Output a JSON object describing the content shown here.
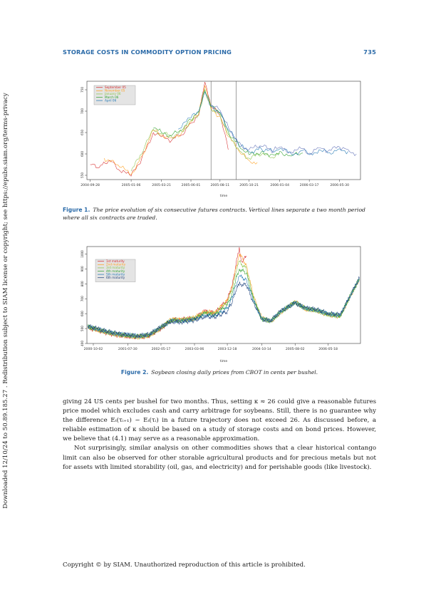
{
  "running_header": {
    "title": "STORAGE COSTS IN COMMODITY OPTION PRICING",
    "page_number": "735"
  },
  "sidebar_note": "Downloaded 12/10/24 to 50.89.185.27 . Redistribution subject to SIAM license or copyright; see https://epubs.siam.org/terms-privacy",
  "colors": {
    "accent": "#2a6aa8"
  },
  "figure1": {
    "label": "Figure 1.",
    "caption": "The price evolution of six consecutive futures contracts. Vertical lines separate a two month period where all six contracts are traded."
  },
  "figure2": {
    "label": "Figure 2.",
    "caption": "Soybean closing daily prices from CBOT in cents per bushel."
  },
  "chart_data": [
    {
      "type": "line",
      "ylabel": "price (cents)",
      "xlabel": "time",
      "ylim": [
        540,
        770
      ],
      "y_ticks": [
        550,
        600,
        650,
        700,
        750
      ],
      "x_ticks": [
        "2004-09-28",
        "2005-01-06",
        "2005-03-21",
        "2005-06-01",
        "2005-08-11",
        "2005-10-21",
        "2006-01-04",
        "2006-03-17",
        "2006-05-30"
      ],
      "legend_position": "top-left",
      "vertical_lines_at": [
        "2005-07-20",
        "2005-09-19"
      ],
      "series": [
        {
          "name": "September 05",
          "color": "#d62728",
          "x": [
            "2004-09-28",
            "2004-10-20",
            "2004-11-15",
            "2004-12-10",
            "2005-01-06",
            "2005-02-01",
            "2005-03-01",
            "2005-03-21",
            "2005-04-15",
            "2005-05-10",
            "2005-06-01",
            "2005-06-20",
            "2005-07-05",
            "2005-07-20",
            "2005-08-11",
            "2005-08-31"
          ],
          "values": [
            575,
            568,
            585,
            560,
            548,
            590,
            650,
            640,
            632,
            645,
            672,
            690,
            768,
            710,
            690,
            610
          ]
        },
        {
          "name": "November 05",
          "color": "#ff9f1c",
          "x": [
            "2004-11-01",
            "2004-12-01",
            "2005-01-06",
            "2005-02-01",
            "2005-03-01",
            "2005-03-21",
            "2005-04-15",
            "2005-05-10",
            "2005-06-01",
            "2005-06-20",
            "2005-07-05",
            "2005-07-20",
            "2005-08-11",
            "2005-09-01",
            "2005-10-01",
            "2005-10-21",
            "2005-11-10"
          ],
          "values": [
            590,
            575,
            552,
            595,
            655,
            645,
            638,
            650,
            675,
            692,
            760,
            705,
            688,
            640,
            600,
            585,
            580
          ]
        },
        {
          "name": "January 06",
          "color": "#8bc34a",
          "x": [
            "2005-01-06",
            "2005-02-01",
            "2005-03-01",
            "2005-03-21",
            "2005-04-15",
            "2005-05-10",
            "2005-06-01",
            "2005-06-20",
            "2005-07-05",
            "2005-07-20",
            "2005-08-11",
            "2005-09-01",
            "2005-10-01",
            "2005-10-21",
            "2005-11-20",
            "2005-12-20",
            "2006-01-04"
          ],
          "values": [
            560,
            600,
            658,
            648,
            640,
            652,
            678,
            695,
            752,
            708,
            690,
            645,
            605,
            590,
            598,
            590,
            600
          ]
        },
        {
          "name": "March 06",
          "color": "#2ca02c",
          "x": [
            "2005-03-01",
            "2005-03-21",
            "2005-04-15",
            "2005-05-10",
            "2005-06-01",
            "2005-06-20",
            "2005-07-05",
            "2005-07-20",
            "2005-08-11",
            "2005-09-01",
            "2005-10-01",
            "2005-10-21",
            "2005-11-20",
            "2005-12-20",
            "2006-01-04",
            "2006-02-01",
            "2006-03-01"
          ],
          "values": [
            660,
            650,
            643,
            655,
            680,
            698,
            748,
            710,
            695,
            650,
            612,
            598,
            605,
            598,
            606,
            595,
            602
          ]
        },
        {
          "name": "April 06",
          "color": "#1f77b4",
          "x": [
            "2005-05-01",
            "2005-06-01",
            "2005-06-20",
            "2005-07-05",
            "2005-07-20",
            "2005-08-11",
            "2005-09-01",
            "2005-10-01",
            "2005-10-21",
            "2005-11-20",
            "2005-12-20",
            "2006-01-04",
            "2006-02-01",
            "2006-03-01",
            "2006-03-17",
            "2006-04-10",
            "2006-05-01",
            "2006-05-30",
            "2006-06-20"
          ],
          "values": [
            658,
            684,
            700,
            745,
            712,
            698,
            655,
            618,
            605,
            612,
            604,
            612,
            600,
            608,
            598,
            610,
            602,
            612,
            606
          ]
        },
        {
          "name": "",
          "color": "#5b6bb5",
          "x": [
            "2005-07-20",
            "2005-08-11",
            "2005-09-01",
            "2005-10-01",
            "2005-10-21",
            "2005-11-20",
            "2005-12-20",
            "2006-01-04",
            "2006-02-01",
            "2006-03-01",
            "2006-03-17",
            "2006-04-10",
            "2006-05-01",
            "2006-05-30",
            "2006-06-20",
            "2006-07-10"
          ],
          "values": [
            715,
            702,
            660,
            622,
            610,
            618,
            608,
            616,
            604,
            612,
            602,
            614,
            606,
            616,
            610,
            600
          ]
        }
      ]
    },
    {
      "type": "line",
      "ylabel": "price in cents/bushel",
      "xlabel": "time",
      "ylim": [
        400,
        1050
      ],
      "y_ticks": [
        400,
        500,
        600,
        700,
        800,
        900,
        1000
      ],
      "x_ticks": [
        "2000-10-02",
        "2001-07-30",
        "2002-05-17",
        "2003-03-06",
        "2003-12-18",
        "2004-10-14",
        "2005-08-02",
        "2006-05-18"
      ],
      "legend_position": "top-left",
      "series": [
        {
          "name": "1st maturity",
          "color": "#d62728",
          "x": [
            "2000-08-15",
            "2000-11-01",
            "2001-02-01",
            "2001-05-01",
            "2001-07-30",
            "2001-11-01",
            "2002-02-01",
            "2002-05-17",
            "2002-08-15",
            "2002-11-01",
            "2003-03-06",
            "2003-06-01",
            "2003-09-01",
            "2003-12-18",
            "2004-02-01",
            "2004-03-01",
            "2004-04-01",
            "2004-04-20",
            "2004-06-01"
          ],
          "values": [
            505,
            490,
            470,
            455,
            448,
            440,
            450,
            500,
            560,
            560,
            570,
            615,
            605,
            690,
            800,
            920,
            1045,
            950,
            980
          ]
        },
        {
          "name": "2nd maturity",
          "color": "#ff9f1c",
          "x": [
            "2000-08-15",
            "2000-11-01",
            "2001-02-01",
            "2001-05-01",
            "2001-07-30",
            "2001-11-01",
            "2002-02-01",
            "2002-05-17",
            "2002-08-15",
            "2002-11-01",
            "2003-03-06",
            "2003-06-01",
            "2003-09-01",
            "2003-12-18",
            "2004-02-01",
            "2004-03-01",
            "2004-04-01",
            "2004-06-01",
            "2004-08-01",
            "2004-10-14",
            "2005-01-01",
            "2005-04-01",
            "2005-08-02",
            "2005-11-01",
            "2006-02-01",
            "2006-05-18",
            "2006-09-01",
            "2006-12-01",
            "2007-02-15"
          ],
          "values": [
            508,
            492,
            472,
            457,
            450,
            442,
            452,
            502,
            562,
            558,
            572,
            612,
            608,
            688,
            790,
            900,
            1000,
            930,
            720,
            570,
            545,
            610,
            680,
            630,
            620,
            590,
            580,
            720,
            830
          ]
        },
        {
          "name": "3rd maturity",
          "color": "#8bc34a",
          "x": [
            "2000-08-15",
            "2000-11-01",
            "2001-02-01",
            "2001-05-01",
            "2001-07-30",
            "2001-11-01",
            "2002-02-01",
            "2002-05-17",
            "2002-08-15",
            "2002-11-01",
            "2003-03-06",
            "2003-06-01",
            "2003-09-01",
            "2003-12-18",
            "2004-02-01",
            "2004-03-01",
            "2004-04-01",
            "2004-06-01",
            "2004-08-01",
            "2004-10-14",
            "2005-01-01",
            "2005-04-01",
            "2005-08-02",
            "2005-11-01",
            "2006-02-01",
            "2006-05-18",
            "2006-09-01",
            "2006-12-01",
            "2007-02-15"
          ],
          "values": [
            510,
            494,
            475,
            460,
            452,
            445,
            455,
            505,
            560,
            556,
            570,
            608,
            600,
            675,
            770,
            870,
            950,
            900,
            710,
            568,
            548,
            612,
            678,
            632,
            622,
            593,
            583,
            722,
            832
          ]
        },
        {
          "name": "4th maturity",
          "color": "#2ca02c",
          "x": [
            "2000-08-15",
            "2000-11-01",
            "2001-02-01",
            "2001-05-01",
            "2001-07-30",
            "2001-11-01",
            "2002-02-01",
            "2002-05-17",
            "2002-08-15",
            "2002-11-01",
            "2003-03-06",
            "2003-06-01",
            "2003-09-01",
            "2003-12-18",
            "2004-02-01",
            "2004-03-01",
            "2004-04-01",
            "2004-06-01",
            "2004-08-01",
            "2004-10-14",
            "2005-01-01",
            "2005-04-01",
            "2005-08-02",
            "2005-11-01",
            "2006-02-01",
            "2006-05-18",
            "2006-09-01",
            "2006-12-01",
            "2007-02-15"
          ],
          "values": [
            512,
            496,
            477,
            462,
            455,
            447,
            457,
            507,
            556,
            552,
            565,
            600,
            592,
            655,
            740,
            830,
            900,
            870,
            700,
            566,
            550,
            614,
            676,
            634,
            624,
            596,
            586,
            724,
            834
          ]
        },
        {
          "name": "5th maturity",
          "color": "#1f77b4",
          "x": [
            "2000-08-15",
            "2000-11-01",
            "2001-02-01",
            "2001-05-01",
            "2001-07-30",
            "2001-11-01",
            "2002-02-01",
            "2002-05-17",
            "2002-08-15",
            "2002-11-01",
            "2003-03-06",
            "2003-06-01",
            "2003-09-01",
            "2003-12-18",
            "2004-02-01",
            "2004-03-01",
            "2004-04-01",
            "2004-06-01",
            "2004-08-01",
            "2004-10-14",
            "2005-01-01",
            "2005-04-01",
            "2005-08-02",
            "2005-11-01",
            "2006-02-01",
            "2006-05-18",
            "2006-09-01",
            "2006-12-01",
            "2007-02-15"
          ],
          "values": [
            514,
            498,
            479,
            464,
            457,
            449,
            459,
            509,
            552,
            548,
            560,
            590,
            585,
            635,
            710,
            790,
            850,
            830,
            690,
            564,
            552,
            616,
            674,
            636,
            626,
            599,
            589,
            726,
            836
          ]
        },
        {
          "name": "6th maturity",
          "color": "#1b3f7a",
          "x": [
            "2000-08-15",
            "2000-11-01",
            "2001-02-01",
            "2001-05-01",
            "2001-07-30",
            "2001-11-01",
            "2002-02-01",
            "2002-05-17",
            "2002-08-15",
            "2002-11-01",
            "2003-03-06",
            "2003-06-01",
            "2003-09-01",
            "2003-12-18",
            "2004-02-01",
            "2004-03-01",
            "2004-04-01",
            "2004-06-01",
            "2004-08-01",
            "2004-10-14",
            "2005-01-01",
            "2005-04-01",
            "2005-08-02",
            "2005-11-01",
            "2006-02-01",
            "2006-05-18",
            "2006-09-01",
            "2006-12-01",
            "2007-02-15"
          ],
          "values": [
            516,
            500,
            481,
            466,
            459,
            451,
            461,
            511,
            548,
            544,
            555,
            580,
            578,
            615,
            680,
            750,
            800,
            790,
            680,
            562,
            554,
            618,
            672,
            638,
            628,
            602,
            592,
            728,
            838
          ]
        }
      ]
    }
  ],
  "body": {
    "paragraphs": [
      "giving 24 US cents per bushel for two months. Thus, setting κ ≈ 26 could give a reasonable futures price model which excludes cash and carry arbitrage for soybeans. Still, there is no guarantee why the difference Eₜ(τᵢ₊₁) − Eₜ(τᵢ) in a future trajectory does not exceed 26. As discussed before, a reliable estimation of κ should be based on a study of storage costs and on bond prices. However, we believe that (4.1) may serve as a reasonable approximation.",
      "Not surprisingly, similar analysis on other commodities shows that a clear historical contango limit can also be observed for other storable agricultural products and for precious metals but not for assets with limited storability (oil, gas, and electricity) and for perishable goods (like livestock)."
    ]
  },
  "footer": "Copyright © by SIAM. Unauthorized reproduction of this article is prohibited."
}
